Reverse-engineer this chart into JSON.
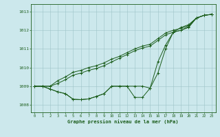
{
  "xlabel": "Graphe pression niveau de la mer (hPa)",
  "xlim": [
    -0.5,
    23.5
  ],
  "ylim": [
    1007.6,
    1013.4
  ],
  "yticks": [
    1008,
    1009,
    1010,
    1011,
    1012,
    1013
  ],
  "xticks": [
    0,
    1,
    2,
    3,
    4,
    5,
    6,
    7,
    8,
    9,
    10,
    11,
    12,
    13,
    14,
    15,
    16,
    17,
    18,
    19,
    20,
    21,
    22,
    23
  ],
  "bg_color": "#cce8ec",
  "line_color": "#1a5c1a",
  "grid_color": "#9dc4c8",
  "series1": [
    1009.0,
    1009.0,
    1008.85,
    1008.7,
    1008.6,
    1008.3,
    1008.28,
    1008.32,
    1008.45,
    1008.6,
    1009.0,
    1009.0,
    1009.0,
    1009.0,
    1009.0,
    1008.9,
    1009.7,
    1011.0,
    1011.9,
    1012.15,
    1012.3,
    1012.65,
    1012.8,
    1012.85
  ],
  "series2": [
    1009.0,
    1009.0,
    1008.85,
    1008.7,
    1008.6,
    1008.3,
    1008.28,
    1008.32,
    1008.45,
    1008.6,
    1009.0,
    1009.0,
    1009.0,
    1008.4,
    1008.4,
    1008.9,
    1010.3,
    1011.2,
    1011.9,
    1012.0,
    1012.2,
    1012.65,
    1012.8,
    1012.85
  ],
  "series3": [
    1009.0,
    1009.0,
    1009.0,
    1009.3,
    1009.5,
    1009.75,
    1009.85,
    1010.0,
    1010.1,
    1010.25,
    1010.45,
    1010.6,
    1010.8,
    1011.0,
    1011.15,
    1011.25,
    1011.55,
    1011.85,
    1012.0,
    1012.1,
    1012.25,
    1012.65,
    1012.8,
    1012.85
  ],
  "series4": [
    1009.0,
    1009.0,
    1009.0,
    1009.15,
    1009.35,
    1009.6,
    1009.7,
    1009.85,
    1009.95,
    1010.1,
    1010.3,
    1010.5,
    1010.7,
    1010.9,
    1011.05,
    1011.15,
    1011.45,
    1011.75,
    1011.9,
    1012.0,
    1012.15,
    1012.65,
    1012.8,
    1012.85
  ]
}
